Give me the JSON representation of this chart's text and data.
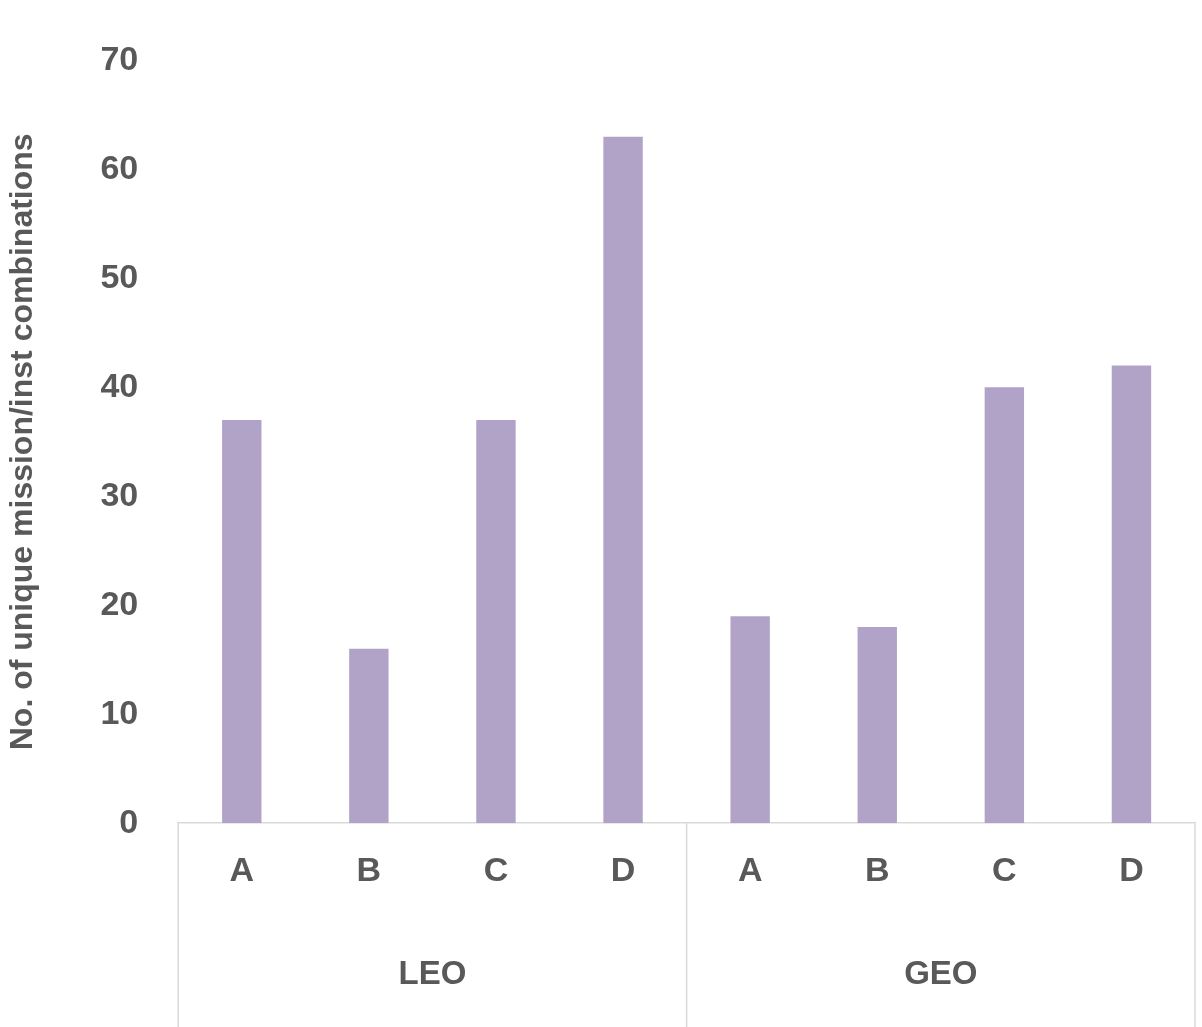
{
  "chart_data": {
    "type": "bar",
    "ylabel": "No. of unique mission/inst combinations",
    "categories": [
      "A",
      "B",
      "C",
      "D",
      "A",
      "B",
      "C",
      "D"
    ],
    "values": [
      37,
      16,
      37,
      63,
      19,
      18,
      40,
      42
    ],
    "color": "#b1a3c8",
    "ylim": [
      0,
      70
    ],
    "yticks": [
      0,
      10,
      20,
      30,
      40,
      50,
      60,
      70
    ],
    "grid": false,
    "legend": false,
    "annotations": [
      "LEO",
      "GEO"
    ]
  }
}
